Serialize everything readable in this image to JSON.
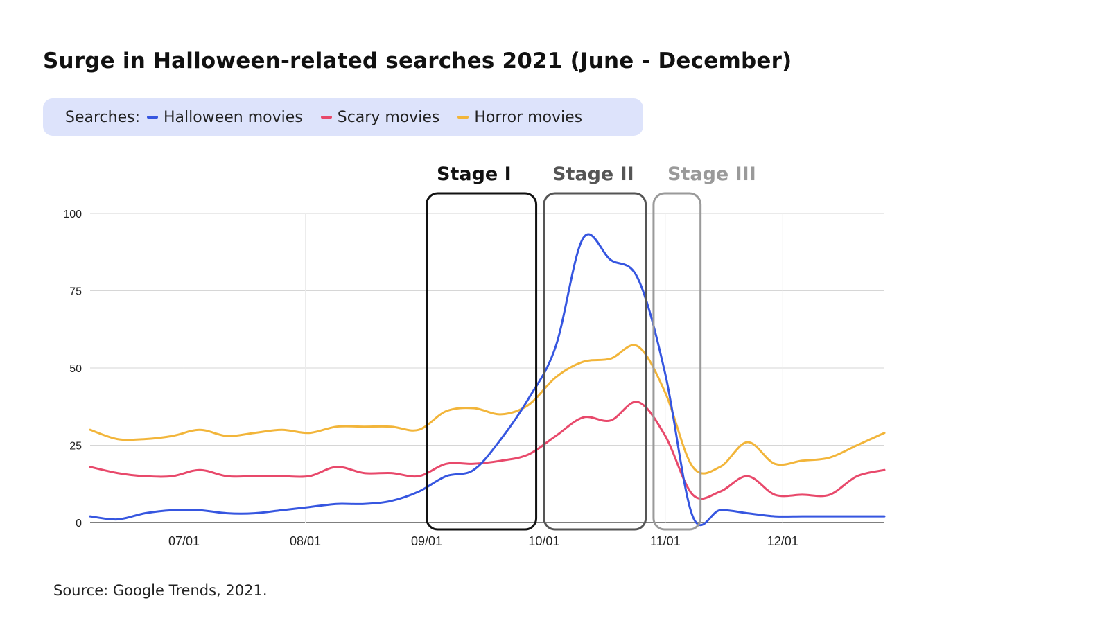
{
  "title": "Surge in Halloween-related searches 2021 (June - December)",
  "legend": {
    "lead": "Searches:",
    "items": [
      {
        "label": "Halloween movies",
        "color": "#3656e0"
      },
      {
        "label": "Scary movies",
        "color": "#e8496b"
      },
      {
        "label": "Horror movies",
        "color": "#f2b53a"
      }
    ]
  },
  "stages": [
    {
      "label": "Stage I",
      "color": "#111111",
      "x_start": "09/01",
      "x_end": "09/29"
    },
    {
      "label": "Stage II",
      "color": "#555555",
      "x_start": "10/01",
      "x_end": "10/27"
    },
    {
      "label": "Stage III",
      "color": "#9a9a9a",
      "x_start": "10/29",
      "x_end": "11/10"
    }
  ],
  "source": "Source: Google Trends, 2021.",
  "chart_data": {
    "type": "line",
    "title": "Surge in Halloween-related searches 2021 (June - December)",
    "xlabel": "",
    "ylabel": "",
    "ylim": [
      0,
      100
    ],
    "yticks": [
      0,
      25,
      50,
      75,
      100
    ],
    "xticks": [
      "07/01",
      "08/01",
      "09/01",
      "10/01",
      "11/01",
      "12/01"
    ],
    "grid": true,
    "x": [
      "06/07",
      "06/14",
      "06/21",
      "06/28",
      "07/05",
      "07/12",
      "07/19",
      "07/26",
      "08/02",
      "08/09",
      "08/16",
      "08/23",
      "08/30",
      "09/06",
      "09/13",
      "09/20",
      "09/27",
      "10/04",
      "10/11",
      "10/18",
      "10/25",
      "11/01",
      "11/08",
      "11/15",
      "11/22",
      "11/29",
      "12/06",
      "12/13",
      "12/20",
      "12/27"
    ],
    "series": [
      {
        "name": "Halloween movies",
        "color": "#3656e0",
        "values": [
          2,
          1,
          3,
          4,
          4,
          3,
          3,
          4,
          5,
          6,
          6,
          7,
          10,
          15,
          17,
          27,
          40,
          57,
          92,
          85,
          79,
          48,
          2,
          4,
          3,
          2,
          2,
          2,
          2,
          2
        ]
      },
      {
        "name": "Scary movies",
        "color": "#e8496b",
        "values": [
          18,
          16,
          15,
          15,
          17,
          15,
          15,
          15,
          15,
          18,
          16,
          16,
          15,
          19,
          19,
          20,
          22,
          28,
          34,
          33,
          39,
          28,
          9,
          10,
          15,
          9,
          9,
          9,
          15,
          17
        ]
      },
      {
        "name": "Horror movies",
        "color": "#f2b53a",
        "values": [
          30,
          27,
          27,
          28,
          30,
          28,
          29,
          30,
          29,
          31,
          31,
          31,
          30,
          36,
          37,
          35,
          38,
          47,
          52,
          53,
          57,
          42,
          18,
          18,
          26,
          19,
          20,
          21,
          25,
          29
        ]
      }
    ]
  }
}
